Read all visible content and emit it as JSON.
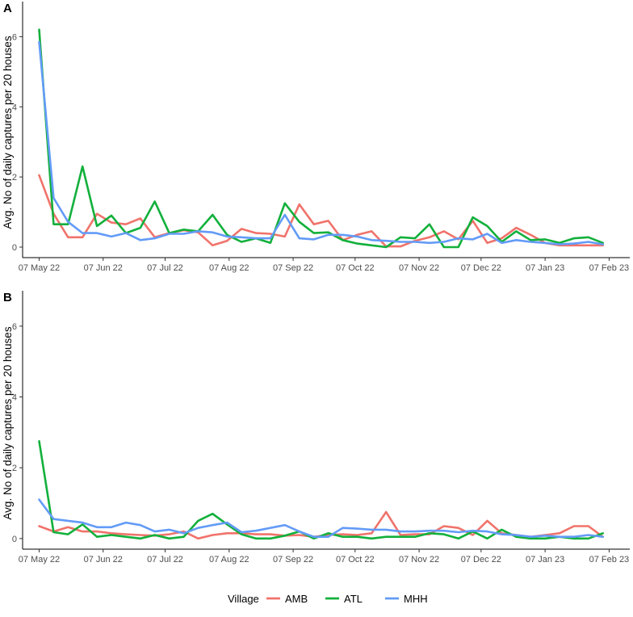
{
  "legend": {
    "title": "Village",
    "placement": "bottom",
    "entries": [
      {
        "name": "AMB",
        "color": "#F0736B"
      },
      {
        "name": "ATL",
        "color": "#12B03B"
      },
      {
        "name": "MHH",
        "color": "#639BF7"
      }
    ]
  },
  "chart_data": [
    {
      "type": "line",
      "panel": "A",
      "ylabel": "Avg. No of daily captures per 20 houses",
      "xlabel": "",
      "ylim": [
        -0.3,
        7.0
      ],
      "yticks": [
        0,
        2,
        4,
        6
      ],
      "xlim": [
        "2022-04-29",
        "2023-02-17"
      ],
      "xticks": [
        {
          "date": "2022-05-07",
          "label": "07 May 22"
        },
        {
          "date": "2022-06-07",
          "label": "07 Jun 22"
        },
        {
          "date": "2022-07-07",
          "label": "07 Jul 22"
        },
        {
          "date": "2022-08-07",
          "label": "07 Aug 22"
        },
        {
          "date": "2022-09-07",
          "label": "07 Sep 22"
        },
        {
          "date": "2022-10-07",
          "label": "07 Oct 22"
        },
        {
          "date": "2022-11-07",
          "label": "07 Nov 22"
        },
        {
          "date": "2022-12-07",
          "label": "07 Dec 22"
        },
        {
          "date": "2023-01-07",
          "label": "07 Jan 23"
        },
        {
          "date": "2023-02-07",
          "label": "07 Feb 23"
        }
      ],
      "grid": false,
      "x": [
        "2022-05-07",
        "2022-05-14",
        "2022-05-21",
        "2022-05-28",
        "2022-06-04",
        "2022-06-11",
        "2022-06-18",
        "2022-06-25",
        "2022-07-02",
        "2022-07-09",
        "2022-07-16",
        "2022-07-23",
        "2022-07-30",
        "2022-08-06",
        "2022-08-13",
        "2022-08-20",
        "2022-08-27",
        "2022-09-03",
        "2022-09-10",
        "2022-09-17",
        "2022-09-24",
        "2022-10-01",
        "2022-10-08",
        "2022-10-15",
        "2022-10-22",
        "2022-10-29",
        "2022-11-05",
        "2022-11-12",
        "2022-11-19",
        "2022-11-26",
        "2022-12-03",
        "2022-12-10",
        "2022-12-17",
        "2022-12-24",
        "2022-12-31",
        "2023-01-07",
        "2023-01-14",
        "2023-01-21",
        "2023-01-28",
        "2023-02-04"
      ],
      "series": [
        {
          "name": "AMB",
          "color": "#F0736B",
          "values": [
            2.05,
            0.95,
            0.28,
            0.28,
            0.95,
            0.7,
            0.65,
            0.82,
            0.28,
            0.4,
            0.48,
            0.42,
            0.05,
            0.18,
            0.52,
            0.4,
            0.38,
            0.3,
            1.22,
            0.65,
            0.75,
            0.2,
            0.35,
            0.45,
            0.02,
            0.02,
            0.18,
            0.28,
            0.45,
            0.22,
            0.75,
            0.12,
            0.25,
            0.55,
            0.35,
            0.12,
            0.05,
            0.05,
            0.05,
            0.05
          ]
        },
        {
          "name": "ATL",
          "color": "#12B03B",
          "values": [
            6.2,
            0.65,
            0.65,
            2.3,
            0.6,
            0.9,
            0.4,
            0.55,
            1.3,
            0.4,
            0.5,
            0.45,
            0.92,
            0.35,
            0.15,
            0.25,
            0.12,
            1.25,
            0.72,
            0.4,
            0.42,
            0.2,
            0.1,
            0.05,
            0.0,
            0.28,
            0.25,
            0.65,
            0.0,
            0.0,
            0.85,
            0.6,
            0.15,
            0.45,
            0.2,
            0.22,
            0.12,
            0.25,
            0.28,
            0.12
          ]
        },
        {
          "name": "MHH",
          "color": "#639BF7",
          "values": [
            5.85,
            1.4,
            0.72,
            0.4,
            0.4,
            0.3,
            0.4,
            0.2,
            0.25,
            0.38,
            0.38,
            0.45,
            0.42,
            0.3,
            0.28,
            0.25,
            0.25,
            0.92,
            0.25,
            0.22,
            0.35,
            0.35,
            0.3,
            0.2,
            0.18,
            0.15,
            0.15,
            0.12,
            0.15,
            0.25,
            0.22,
            0.38,
            0.12,
            0.2,
            0.15,
            0.12,
            0.08,
            0.1,
            0.15,
            0.08
          ]
        }
      ]
    },
    {
      "type": "line",
      "panel": "B",
      "ylabel": "Avg. No of daily captures per 20 houses",
      "xlabel": "",
      "ylim": [
        -0.3,
        7.0
      ],
      "yticks": [
        0,
        2,
        4,
        6
      ],
      "xlim": [
        "2022-04-29",
        "2023-02-17"
      ],
      "xticks": [
        {
          "date": "2022-05-07",
          "label": "07 May 22"
        },
        {
          "date": "2022-06-07",
          "label": "07 Jun 22"
        },
        {
          "date": "2022-07-07",
          "label": "07 Jul 22"
        },
        {
          "date": "2022-08-07",
          "label": "07 Aug 22"
        },
        {
          "date": "2022-09-07",
          "label": "07 Sep 22"
        },
        {
          "date": "2022-10-07",
          "label": "07 Oct 22"
        },
        {
          "date": "2022-11-07",
          "label": "07 Nov 22"
        },
        {
          "date": "2022-12-07",
          "label": "07 Dec 22"
        },
        {
          "date": "2023-01-07",
          "label": "07 Jan 23"
        },
        {
          "date": "2023-02-07",
          "label": "07 Feb 23"
        }
      ],
      "grid": false,
      "x": [
        "2022-05-07",
        "2022-05-14",
        "2022-05-21",
        "2022-05-28",
        "2022-06-04",
        "2022-06-11",
        "2022-06-18",
        "2022-06-25",
        "2022-07-02",
        "2022-07-09",
        "2022-07-16",
        "2022-07-23",
        "2022-07-30",
        "2022-08-06",
        "2022-08-13",
        "2022-08-20",
        "2022-08-27",
        "2022-09-03",
        "2022-09-10",
        "2022-09-17",
        "2022-09-24",
        "2022-10-01",
        "2022-10-08",
        "2022-10-15",
        "2022-10-22",
        "2022-10-29",
        "2022-11-05",
        "2022-11-12",
        "2022-11-19",
        "2022-11-26",
        "2022-12-03",
        "2022-12-10",
        "2022-12-17",
        "2022-12-24",
        "2022-12-31",
        "2023-01-07",
        "2023-01-14",
        "2023-01-21",
        "2023-01-28",
        "2023-02-04"
      ],
      "series": [
        {
          "name": "AMB",
          "color": "#F0736B",
          "values": [
            0.35,
            0.2,
            0.32,
            0.2,
            0.2,
            0.15,
            0.12,
            0.1,
            0.08,
            0.12,
            0.2,
            0.0,
            0.1,
            0.15,
            0.15,
            0.12,
            0.12,
            0.08,
            0.1,
            0.05,
            0.1,
            0.12,
            0.1,
            0.15,
            0.75,
            0.1,
            0.12,
            0.12,
            0.35,
            0.3,
            0.1,
            0.5,
            0.15,
            0.1,
            0.05,
            0.1,
            0.15,
            0.35,
            0.35,
            0.05
          ]
        },
        {
          "name": "ATL",
          "color": "#12B03B",
          "values": [
            2.75,
            0.18,
            0.12,
            0.4,
            0.05,
            0.1,
            0.05,
            0.0,
            0.1,
            0.0,
            0.05,
            0.5,
            0.7,
            0.4,
            0.12,
            0.0,
            0.0,
            0.08,
            0.2,
            0.0,
            0.15,
            0.05,
            0.05,
            0.0,
            0.05,
            0.05,
            0.05,
            0.15,
            0.12,
            0.0,
            0.2,
            0.0,
            0.25,
            0.05,
            0.0,
            0.0,
            0.05,
            0.0,
            0.0,
            0.15
          ]
        },
        {
          "name": "MHH",
          "color": "#639BF7",
          "values": [
            1.1,
            0.55,
            0.5,
            0.45,
            0.32,
            0.32,
            0.45,
            0.38,
            0.2,
            0.25,
            0.15,
            0.3,
            0.38,
            0.45,
            0.18,
            0.22,
            0.3,
            0.38,
            0.2,
            0.05,
            0.05,
            0.3,
            0.28,
            0.25,
            0.25,
            0.2,
            0.2,
            0.22,
            0.22,
            0.18,
            0.22,
            0.2,
            0.12,
            0.1,
            0.05,
            0.08,
            0.05,
            0.05,
            0.1,
            0.05
          ]
        }
      ]
    }
  ]
}
